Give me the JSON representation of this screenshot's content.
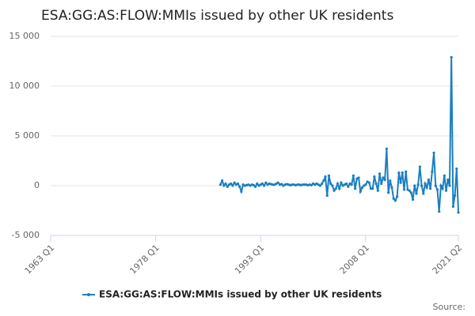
{
  "chart_data": {
    "type": "line",
    "title": "ESA:GG:AS:FLOW:MMIs issued by other UK residents",
    "source": "Source:",
    "x": [
      "1987 Q2",
      "1987 Q3",
      "1987 Q4",
      "1988 Q1",
      "1988 Q2",
      "1988 Q3",
      "1988 Q4",
      "1989 Q1",
      "1989 Q2",
      "1989 Q3",
      "1989 Q4",
      "1990 Q1",
      "1990 Q2",
      "1990 Q3",
      "1990 Q4",
      "1991 Q1",
      "1991 Q2",
      "1991 Q3",
      "1991 Q4",
      "1992 Q1",
      "1992 Q2",
      "1992 Q3",
      "1992 Q4",
      "1993 Q1",
      "1993 Q2",
      "1993 Q3",
      "1993 Q4",
      "1994 Q1",
      "1994 Q2",
      "1994 Q3",
      "1994 Q4",
      "1995 Q1",
      "1995 Q2",
      "1995 Q3",
      "1995 Q4",
      "1996 Q1",
      "1996 Q2",
      "1996 Q3",
      "1996 Q4",
      "1997 Q1",
      "1997 Q2",
      "1997 Q3",
      "1997 Q4",
      "1998 Q1",
      "1998 Q2",
      "1998 Q3",
      "1998 Q4",
      "1999 Q1",
      "1999 Q2",
      "1999 Q3",
      "1999 Q4",
      "2000 Q1",
      "2000 Q2",
      "2000 Q3",
      "2000 Q4",
      "2001 Q1",
      "2001 Q2",
      "2001 Q3",
      "2001 Q4",
      "2002 Q1",
      "2002 Q2",
      "2002 Q3",
      "2002 Q4",
      "2003 Q1",
      "2003 Q2",
      "2003 Q3",
      "2003 Q4",
      "2004 Q1",
      "2004 Q2",
      "2004 Q3",
      "2004 Q4",
      "2005 Q1",
      "2005 Q2",
      "2005 Q3",
      "2005 Q4",
      "2006 Q1",
      "2006 Q2",
      "2006 Q3",
      "2006 Q4",
      "2007 Q1",
      "2007 Q2",
      "2007 Q3",
      "2007 Q4",
      "2008 Q1",
      "2008 Q2",
      "2008 Q3",
      "2008 Q4",
      "2009 Q1",
      "2009 Q2",
      "2009 Q3",
      "2009 Q4",
      "2010 Q1",
      "2010 Q2",
      "2010 Q3",
      "2010 Q4",
      "2011 Q1",
      "2011 Q2",
      "2011 Q3",
      "2011 Q4",
      "2012 Q1",
      "2012 Q2",
      "2012 Q3",
      "2012 Q4",
      "2013 Q1",
      "2013 Q2",
      "2013 Q3",
      "2013 Q4",
      "2014 Q1",
      "2014 Q2",
      "2014 Q3",
      "2014 Q4",
      "2015 Q1",
      "2015 Q2",
      "2015 Q3",
      "2015 Q4",
      "2016 Q1",
      "2016 Q2",
      "2016 Q3",
      "2016 Q4",
      "2017 Q1",
      "2017 Q2",
      "2017 Q3",
      "2017 Q4",
      "2018 Q1",
      "2018 Q2",
      "2018 Q3",
      "2018 Q4",
      "2019 Q1",
      "2019 Q2",
      "2019 Q3",
      "2019 Q4",
      "2020 Q1",
      "2020 Q2",
      "2020 Q3",
      "2020 Q4",
      "2021 Q1",
      "2021 Q2"
    ],
    "series": [
      {
        "name": "ESA:GG:AS:FLOW:MMIs issued by other UK residents",
        "color": "#1a7fc0",
        "values": [
          100,
          500,
          0,
          200,
          -100,
          100,
          200,
          0,
          300,
          100,
          200,
          -100,
          -600,
          100,
          0,
          50,
          100,
          0,
          100,
          50,
          -100,
          200,
          0,
          100,
          200,
          0,
          300,
          100,
          200,
          150,
          100,
          100,
          200,
          300,
          100,
          150,
          0,
          100,
          150,
          100,
          50,
          100,
          100,
          50,
          100,
          100,
          50,
          100,
          100,
          100,
          50,
          100,
          50,
          200,
          100,
          200,
          100,
          0,
          200,
          500,
          900,
          -1000,
          1000,
          200,
          0,
          -500,
          -300,
          200,
          -300,
          300,
          0,
          100,
          200,
          -100,
          200,
          100,
          1000,
          -300,
          700,
          800,
          -600,
          -200,
          0,
          100,
          400,
          300,
          -300,
          -300,
          900,
          200,
          -500,
          1200,
          200,
          800,
          600,
          3700,
          -700,
          500,
          -200,
          -1300,
          -1500,
          -1100,
          1300,
          300,
          1300,
          -400,
          1400,
          -400,
          -500,
          -700,
          -1400,
          0,
          -800,
          100,
          1900,
          0,
          -800,
          200,
          -200,
          600,
          -300,
          1400,
          3300,
          0,
          -400,
          -2600,
          0,
          -300,
          1000,
          -500,
          600,
          0,
          12900,
          -2100,
          -1000,
          1700,
          -2700
        ]
      }
    ],
    "xlim": [
      "1963 Q1",
      "2021 Q2"
    ],
    "xticks": [
      "1963 Q1",
      "1978 Q1",
      "1993 Q1",
      "2008 Q1",
      "2021 Q2"
    ],
    "ylim": [
      -5000,
      15000
    ],
    "yticks": [
      {
        "value": -5000,
        "label": "-5 000"
      },
      0,
      {
        "value": 5000,
        "label": "5 000"
      },
      {
        "value": 10000,
        "label": "10 000"
      },
      {
        "value": 15000,
        "label": "15 000"
      }
    ],
    "grid": true
  }
}
